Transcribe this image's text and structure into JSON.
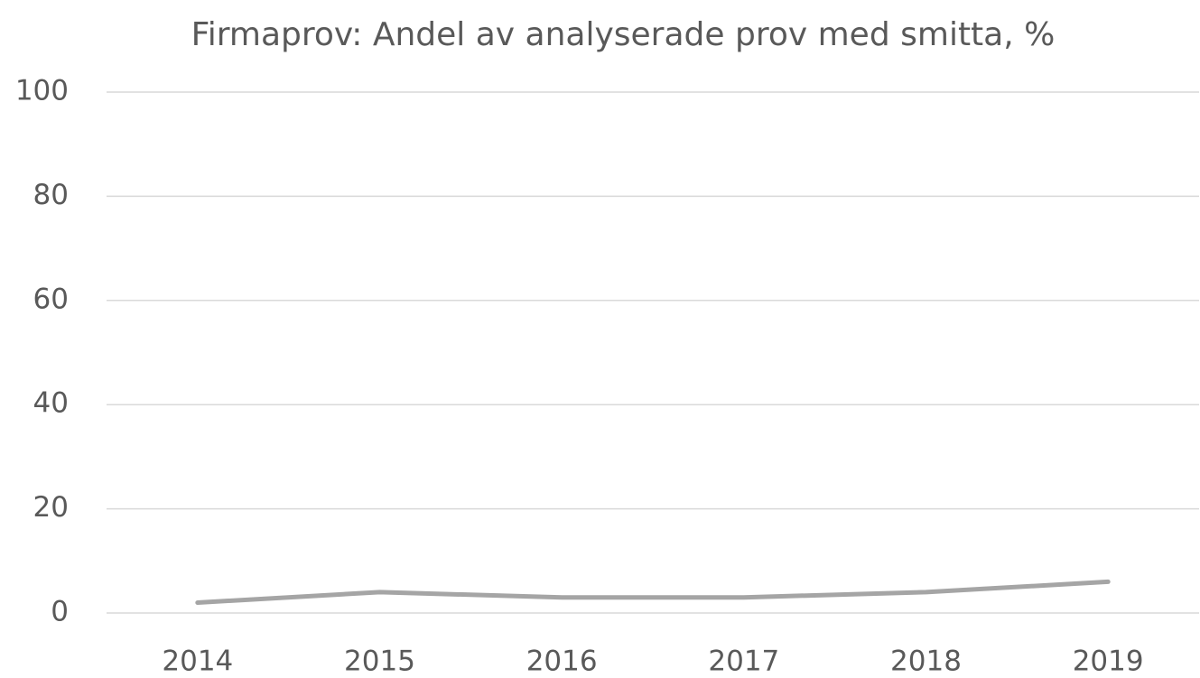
{
  "chart_data": {
    "type": "line",
    "title": "Firmaprov: Andel av analyserade prov med smitta, %",
    "categories": [
      "2014",
      "2015",
      "2016",
      "2017",
      "2018",
      "2019"
    ],
    "values": [
      2,
      4,
      3,
      3,
      4,
      6
    ],
    "color": "#a5a5a5",
    "ylim": [
      0,
      100
    ],
    "yticks": [
      0,
      20,
      40,
      60,
      80,
      100
    ],
    "grid": true
  }
}
